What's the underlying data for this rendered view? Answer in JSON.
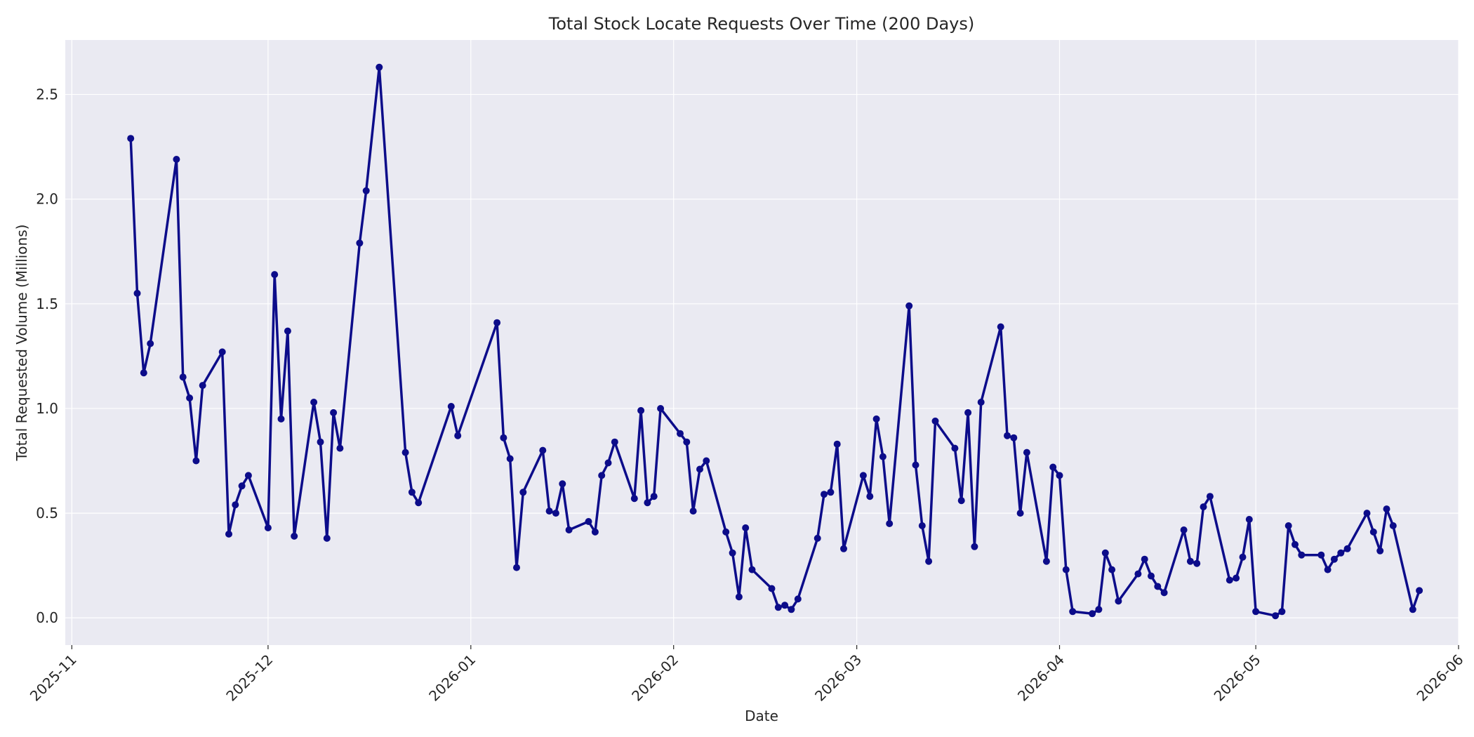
{
  "chart_data": {
    "type": "line",
    "title": "Total Stock Locate Requests Over Time (200 Days)",
    "xlabel": "Date",
    "ylabel": "Total Requested Volume (Millions)",
    "x_tick_labels": [
      "2025-11",
      "2025-12",
      "2026-01",
      "2026-02",
      "2026-03",
      "2026-04",
      "2026-05",
      "2026-06"
    ],
    "y_tick_labels": [
      "0.0",
      "0.5",
      "1.0",
      "1.5",
      "2.0",
      "2.5"
    ],
    "ylim": [
      -0.13,
      2.76
    ],
    "xlim": [
      "2025-10-31",
      "2026-06-01"
    ],
    "grid": true,
    "colors": {
      "line": "#0c0c8a",
      "plot_bg": "#eaeaf2",
      "grid": "#ffffff"
    },
    "series": [
      {
        "points": [
          [
            "2025-11-10",
            2.29
          ],
          [
            "2025-11-11",
            1.55
          ],
          [
            "2025-11-12",
            1.17
          ],
          [
            "2025-11-13",
            1.31
          ],
          [
            "2025-11-17",
            2.19
          ],
          [
            "2025-11-18",
            1.15
          ],
          [
            "2025-11-19",
            1.05
          ],
          [
            "2025-11-20",
            0.75
          ],
          [
            "2025-11-21",
            1.11
          ],
          [
            "2025-11-24",
            1.27
          ],
          [
            "2025-11-25",
            0.4
          ],
          [
            "2025-11-26",
            0.54
          ],
          [
            "2025-11-27",
            0.63
          ],
          [
            "2025-11-28",
            0.68
          ],
          [
            "2025-12-01",
            0.43
          ],
          [
            "2025-12-02",
            1.64
          ],
          [
            "2025-12-03",
            0.95
          ],
          [
            "2025-12-04",
            1.37
          ],
          [
            "2025-12-05",
            0.39
          ],
          [
            "2025-12-08",
            1.03
          ],
          [
            "2025-12-09",
            0.84
          ],
          [
            "2025-12-10",
            0.38
          ],
          [
            "2025-12-11",
            0.98
          ],
          [
            "2025-12-12",
            0.81
          ],
          [
            "2025-12-15",
            1.79
          ],
          [
            "2025-12-16",
            2.04
          ],
          [
            "2025-12-18",
            2.63
          ],
          [
            "2025-12-22",
            0.79
          ],
          [
            "2025-12-23",
            0.6
          ],
          [
            "2025-12-24",
            0.55
          ],
          [
            "2025-12-29",
            1.01
          ],
          [
            "2025-12-30",
            0.87
          ],
          [
            "2026-01-05",
            1.41
          ],
          [
            "2026-01-06",
            0.86
          ],
          [
            "2026-01-07",
            0.76
          ],
          [
            "2026-01-08",
            0.24
          ],
          [
            "2026-01-09",
            0.6
          ],
          [
            "2026-01-12",
            0.8
          ],
          [
            "2026-01-13",
            0.51
          ],
          [
            "2026-01-14",
            0.5
          ],
          [
            "2026-01-15",
            0.64
          ],
          [
            "2026-01-16",
            0.42
          ],
          [
            "2026-01-19",
            0.46
          ],
          [
            "2026-01-20",
            0.41
          ],
          [
            "2026-01-21",
            0.68
          ],
          [
            "2026-01-22",
            0.74
          ],
          [
            "2026-01-23",
            0.84
          ],
          [
            "2026-01-26",
            0.57
          ],
          [
            "2026-01-27",
            0.99
          ],
          [
            "2026-01-28",
            0.55
          ],
          [
            "2026-01-29",
            0.58
          ],
          [
            "2026-01-30",
            1.0
          ],
          [
            "2026-02-02",
            0.88
          ],
          [
            "2026-02-03",
            0.84
          ],
          [
            "2026-02-04",
            0.51
          ],
          [
            "2026-02-05",
            0.71
          ],
          [
            "2026-02-06",
            0.75
          ],
          [
            "2026-02-09",
            0.41
          ],
          [
            "2026-02-10",
            0.31
          ],
          [
            "2026-02-11",
            0.1
          ],
          [
            "2026-02-12",
            0.43
          ],
          [
            "2026-02-13",
            0.23
          ],
          [
            "2026-02-16",
            0.14
          ],
          [
            "2026-02-17",
            0.05
          ],
          [
            "2026-02-18",
            0.06
          ],
          [
            "2026-02-19",
            0.04
          ],
          [
            "2026-02-20",
            0.09
          ],
          [
            "2026-02-23",
            0.38
          ],
          [
            "2026-02-24",
            0.59
          ],
          [
            "2026-02-25",
            0.6
          ],
          [
            "2026-02-26",
            0.83
          ],
          [
            "2026-02-27",
            0.33
          ],
          [
            "2026-03-02",
            0.68
          ],
          [
            "2026-03-03",
            0.58
          ],
          [
            "2026-03-04",
            0.95
          ],
          [
            "2026-03-05",
            0.77
          ],
          [
            "2026-03-06",
            0.45
          ],
          [
            "2026-03-09",
            1.49
          ],
          [
            "2026-03-10",
            0.73
          ],
          [
            "2026-03-11",
            0.44
          ],
          [
            "2026-03-12",
            0.27
          ],
          [
            "2026-03-13",
            0.94
          ],
          [
            "2026-03-16",
            0.81
          ],
          [
            "2026-03-17",
            0.56
          ],
          [
            "2026-03-18",
            0.98
          ],
          [
            "2026-03-19",
            0.34
          ],
          [
            "2026-03-20",
            1.03
          ],
          [
            "2026-03-23",
            1.39
          ],
          [
            "2026-03-24",
            0.87
          ],
          [
            "2026-03-25",
            0.86
          ],
          [
            "2026-03-26",
            0.5
          ],
          [
            "2026-03-27",
            0.79
          ],
          [
            "2026-03-30",
            0.27
          ],
          [
            "2026-03-31",
            0.72
          ],
          [
            "2026-04-01",
            0.68
          ],
          [
            "2026-04-02",
            0.23
          ],
          [
            "2026-04-03",
            0.03
          ],
          [
            "2026-04-06",
            0.02
          ],
          [
            "2026-04-07",
            0.04
          ],
          [
            "2026-04-08",
            0.31
          ],
          [
            "2026-04-09",
            0.23
          ],
          [
            "2026-04-10",
            0.08
          ],
          [
            "2026-04-13",
            0.21
          ],
          [
            "2026-04-14",
            0.28
          ],
          [
            "2026-04-15",
            0.2
          ],
          [
            "2026-04-16",
            0.15
          ],
          [
            "2026-04-17",
            0.12
          ],
          [
            "2026-04-20",
            0.42
          ],
          [
            "2026-04-21",
            0.27
          ],
          [
            "2026-04-22",
            0.26
          ],
          [
            "2026-04-23",
            0.53
          ],
          [
            "2026-04-24",
            0.58
          ],
          [
            "2026-04-27",
            0.18
          ],
          [
            "2026-04-28",
            0.19
          ],
          [
            "2026-04-29",
            0.29
          ],
          [
            "2026-04-30",
            0.47
          ],
          [
            "2026-05-01",
            0.03
          ],
          [
            "2026-05-04",
            0.01
          ],
          [
            "2026-05-05",
            0.03
          ],
          [
            "2026-05-06",
            0.44
          ],
          [
            "2026-05-07",
            0.35
          ],
          [
            "2026-05-08",
            0.3
          ],
          [
            "2026-05-11",
            0.3
          ],
          [
            "2026-05-12",
            0.23
          ],
          [
            "2026-05-13",
            0.28
          ],
          [
            "2026-05-14",
            0.31
          ],
          [
            "2026-05-15",
            0.33
          ],
          [
            "2026-05-18",
            0.5
          ],
          [
            "2026-05-19",
            0.41
          ],
          [
            "2026-05-20",
            0.32
          ],
          [
            "2026-05-21",
            0.52
          ],
          [
            "2026-05-22",
            0.44
          ],
          [
            "2026-05-25",
            0.04
          ],
          [
            "2026-05-26",
            0.13
          ]
        ]
      }
    ]
  }
}
